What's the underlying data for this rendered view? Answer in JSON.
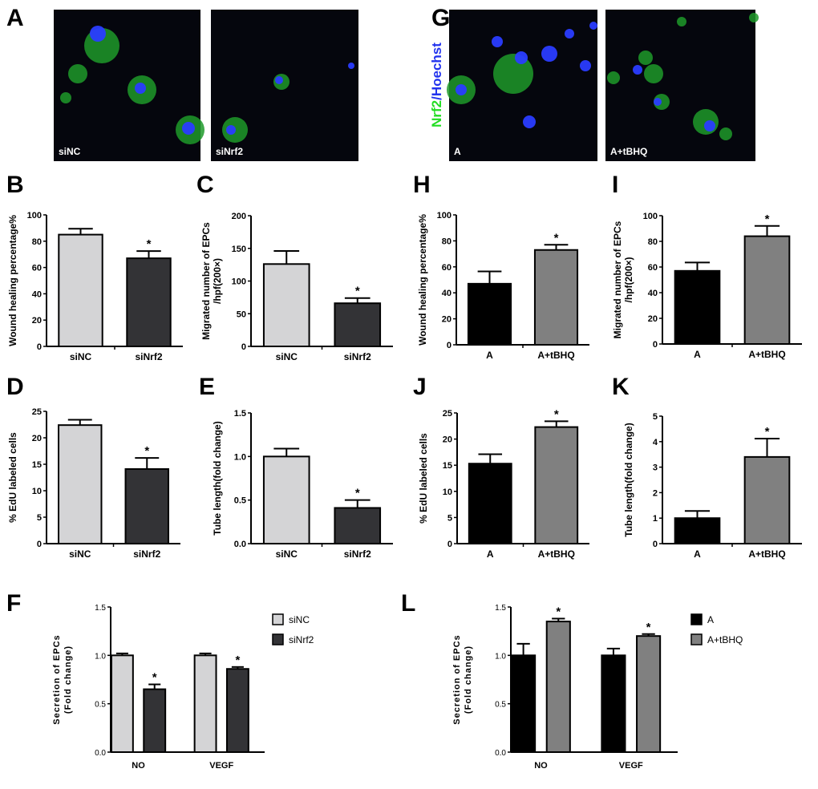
{
  "colors": {
    "siNC": "#d4d4d6",
    "siNrf2": "#333336",
    "A": "#000000",
    "A+tBHQ": "#808080",
    "nrf2_stain": "#22dd22",
    "hoechst_stain": "#2233ee"
  },
  "micrographs": [
    {
      "panel": "A",
      "stain_label": [
        "Nrf2",
        "/Hoechst"
      ],
      "images": [
        {
          "label": "siNC"
        },
        {
          "label": "siNrf2"
        }
      ]
    },
    {
      "panel": "G",
      "stain_label": [
        "Nrf2",
        "/Hoechst"
      ],
      "images": [
        {
          "label": "A"
        },
        {
          "label": "A+tBHQ"
        }
      ]
    }
  ],
  "chart_data": [
    {
      "panel": "B",
      "type": "bar",
      "categories": [
        "siNC",
        "siNrf2"
      ],
      "values": [
        85,
        67
      ],
      "errors": [
        4.5,
        5.5
      ],
      "significant": [
        false,
        true
      ],
      "colors": [
        "siNC",
        "siNrf2"
      ],
      "ylabel": [
        "Wound healing percentage%"
      ],
      "ylim": [
        0,
        100
      ],
      "yticks": [
        "0",
        "20",
        "40",
        "60",
        "80",
        "100"
      ]
    },
    {
      "panel": "C",
      "type": "bar",
      "categories": [
        "siNC",
        "siNrf2"
      ],
      "values": [
        126,
        66
      ],
      "errors": [
        20,
        8
      ],
      "significant": [
        false,
        true
      ],
      "colors": [
        "siNC",
        "siNrf2"
      ],
      "ylabel": [
        "Migrated number of EPCs",
        "/hpf(200×)"
      ],
      "ylim": [
        0,
        200
      ],
      "yticks": [
        "0",
        "50",
        "100",
        "150",
        "200"
      ]
    },
    {
      "panel": "H",
      "type": "bar",
      "categories": [
        "A",
        "A+tBHQ"
      ],
      "values": [
        47,
        73
      ],
      "errors": [
        9.5,
        4
      ],
      "significant": [
        false,
        true
      ],
      "colors": [
        "A",
        "A+tBHQ"
      ],
      "ylabel": [
        "Wound healing percentage%"
      ],
      "ylim": [
        0,
        100
      ],
      "yticks": [
        "0",
        "20",
        "40",
        "60",
        "80",
        "100"
      ]
    },
    {
      "panel": "I",
      "type": "bar",
      "categories": [
        "A",
        "A+tBHQ"
      ],
      "values": [
        57,
        84
      ],
      "errors": [
        6.5,
        8
      ],
      "significant": [
        false,
        true
      ],
      "colors": [
        "A",
        "A+tBHQ"
      ],
      "ylabel": [
        "Migrated number of EPCs",
        "/hpf(200×)"
      ],
      "ylim": [
        0,
        100
      ],
      "yticks": [
        "0",
        "20",
        "40",
        "60",
        "80",
        "100"
      ]
    },
    {
      "panel": "D",
      "type": "bar",
      "categories": [
        "siNC",
        "siNrf2"
      ],
      "values": [
        22.4,
        14.1
      ],
      "errors": [
        1.0,
        2.1
      ],
      "significant": [
        false,
        true
      ],
      "colors": [
        "siNC",
        "siNrf2"
      ],
      "ylabel": [
        "% EdU labeled cells"
      ],
      "ylim": [
        0,
        25
      ],
      "yticks": [
        "0",
        "5",
        "10",
        "15",
        "20",
        "25"
      ]
    },
    {
      "panel": "E",
      "type": "bar",
      "categories": [
        "siNC",
        "siNrf2"
      ],
      "values": [
        1.0,
        0.41
      ],
      "errors": [
        0.09,
        0.09
      ],
      "significant": [
        false,
        true
      ],
      "colors": [
        "siNC",
        "siNrf2"
      ],
      "ylabel": [
        "Tube length(fold change)"
      ],
      "ylim": [
        0,
        1.5
      ],
      "yticks": [
        "0.0",
        "0.5",
        "1.0",
        "1.5"
      ]
    },
    {
      "panel": "J",
      "type": "bar",
      "categories": [
        "A",
        "A+tBHQ"
      ],
      "values": [
        15.3,
        22.3
      ],
      "errors": [
        1.8,
        1.1
      ],
      "significant": [
        false,
        true
      ],
      "colors": [
        "A",
        "A+tBHQ"
      ],
      "ylabel": [
        "% EdU labeled cells"
      ],
      "ylim": [
        0,
        25
      ],
      "yticks": [
        "0",
        "5",
        "10",
        "15",
        "20",
        "25"
      ]
    },
    {
      "panel": "K",
      "type": "bar",
      "categories": [
        "A",
        "A+tBHQ"
      ],
      "values": [
        1.0,
        3.4
      ],
      "errors": [
        0.28,
        0.72
      ],
      "significant": [
        false,
        true
      ],
      "colors": [
        "A",
        "A+tBHQ"
      ],
      "ylabel": [
        "Tube length(fold change)"
      ],
      "ylim": [
        0,
        5
      ],
      "yticks": [
        "0",
        "1",
        "2",
        "3",
        "4",
        "5"
      ]
    },
    {
      "panel": "F",
      "type": "bar",
      "categories": [
        "NO",
        "VEGF"
      ],
      "series": [
        {
          "name": "siNC",
          "values": [
            1.0,
            1.0
          ],
          "errors": [
            0.02,
            0.02
          ],
          "significant": [
            false,
            false
          ]
        },
        {
          "name": "siNrf2",
          "values": [
            0.65,
            0.86
          ],
          "errors": [
            0.05,
            0.02
          ],
          "significant": [
            true,
            true
          ]
        }
      ],
      "ylabel": [
        "Secretion of EPCs",
        "(Fold change)"
      ],
      "ylim": [
        0,
        1.5
      ],
      "yticks": [
        "0.0",
        "0.5",
        "1.0",
        "1.5"
      ],
      "legend": "top-right"
    },
    {
      "panel": "L",
      "type": "bar",
      "categories": [
        "NO",
        "VEGF"
      ],
      "series": [
        {
          "name": "A",
          "values": [
            1.0,
            1.0
          ],
          "errors": [
            0.12,
            0.07
          ],
          "significant": [
            false,
            false
          ]
        },
        {
          "name": "A+tBHQ",
          "values": [
            1.35,
            1.2
          ],
          "errors": [
            0.03,
            0.02
          ],
          "significant": [
            true,
            true
          ]
        }
      ],
      "ylabel": [
        "Secretion of EPCs",
        "(Fold change)"
      ],
      "ylim": [
        0,
        1.5
      ],
      "yticks": [
        "0.0",
        "0.5",
        "1.0",
        "1.5"
      ],
      "legend": "top-right"
    }
  ]
}
